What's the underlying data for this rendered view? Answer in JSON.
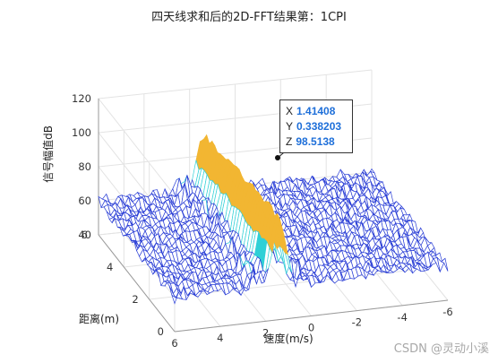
{
  "chart_data": {
    "type": "surface",
    "title": "四天线求和后的2D-FFT结果第：1CPI",
    "xlabel": "速度(m/s)",
    "ylabel": "距离(m)",
    "zlabel": "信号幅值dB",
    "x_ticks": [
      "6",
      "4",
      "2",
      "0",
      "-2",
      "-4",
      "-6"
    ],
    "y_ticks": [
      "0",
      "2",
      "4",
      "6"
    ],
    "z_ticks": [
      "40",
      "60",
      "80",
      "100",
      "120"
    ],
    "xlim": [
      -6,
      6
    ],
    "ylim": [
      0,
      6
    ],
    "zlim": [
      40,
      120
    ],
    "grid": true,
    "noise_floor_db": 60,
    "peak": {
      "x_velocity": 1.4,
      "z_db": 100
    },
    "datatip": {
      "x_label": "X",
      "x": "1.41408",
      "y_label": "Y",
      "y": "0.338203",
      "z_label": "Z",
      "z": "98.5138"
    },
    "colors": {
      "low": "#2b3fd6",
      "mid": "#2fd0d6",
      "high": "#f2b632"
    }
  },
  "watermark": "CSDN @灵动小溪"
}
